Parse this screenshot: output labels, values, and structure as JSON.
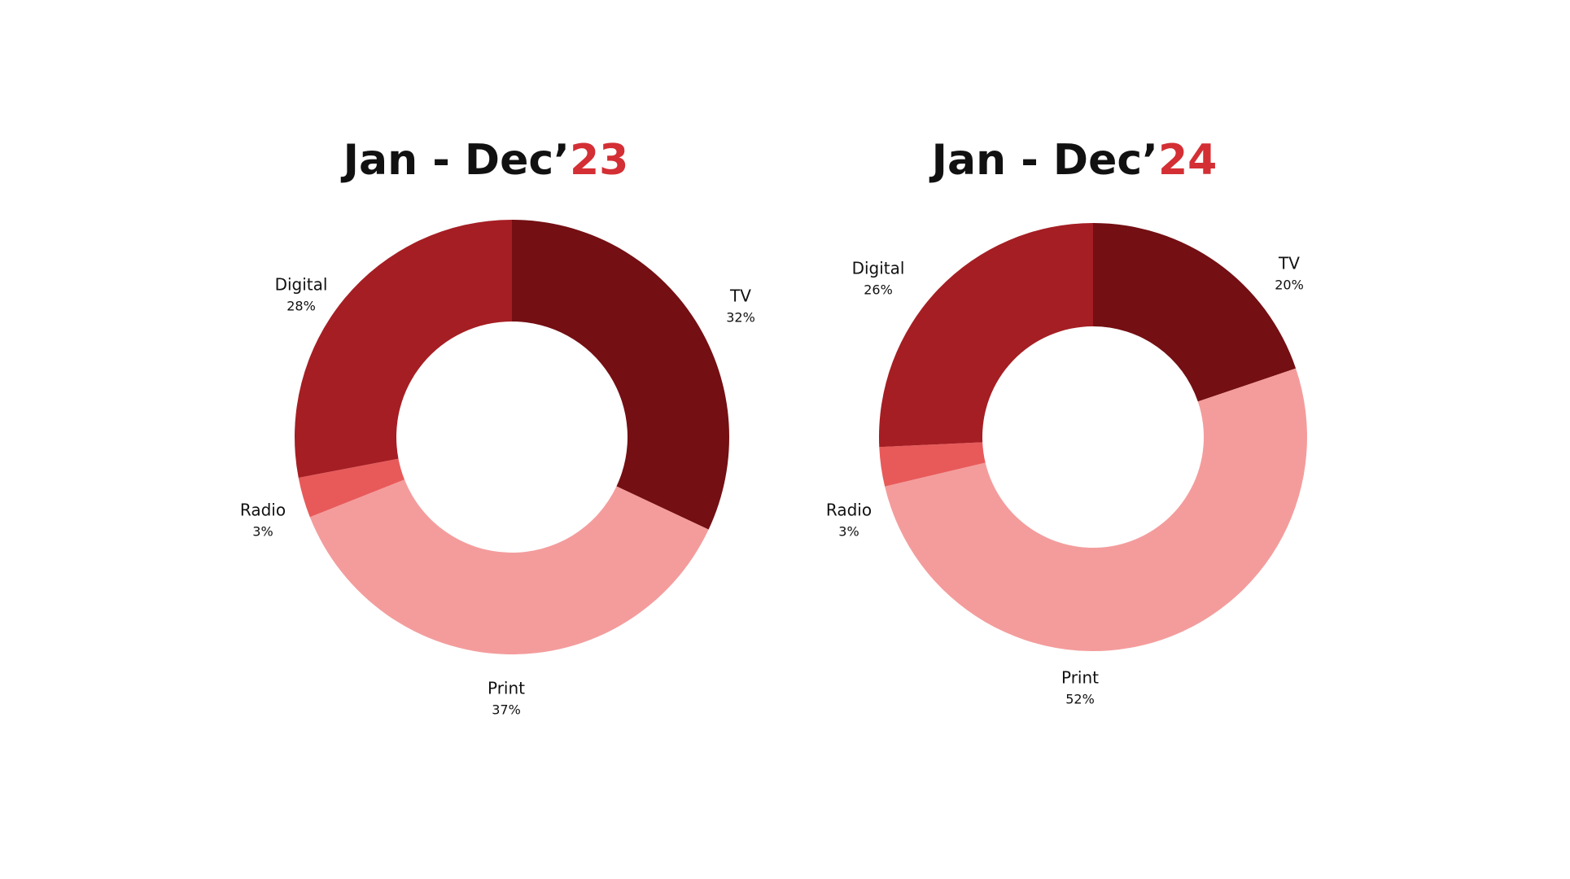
{
  "chart_data": [
    {
      "type": "donut",
      "title": "Jan - Dec’",
      "title_year": "23",
      "title_year_color": "#d32f34",
      "categories": [
        "TV",
        "Print",
        "Radio",
        "Digital"
      ],
      "values": [
        32,
        37,
        3,
        28
      ],
      "value_labels": [
        "32%",
        "37%",
        "3%",
        "28%"
      ],
      "colors": [
        "#740f13",
        "#f49c9c",
        "#e85a5a",
        "#a51e23"
      ]
    },
    {
      "type": "donut",
      "title": "Jan - Dec’",
      "title_year": "24",
      "title_year_color": "#d32f34",
      "categories": [
        "TV",
        "Print",
        "Radio",
        "Digital"
      ],
      "values": [
        20,
        52,
        3,
        26
      ],
      "value_labels": [
        "20%",
        "52%",
        "3%",
        "26%"
      ],
      "colors": [
        "#740f13",
        "#f49c9c",
        "#e85a5a",
        "#a51e23"
      ]
    }
  ]
}
